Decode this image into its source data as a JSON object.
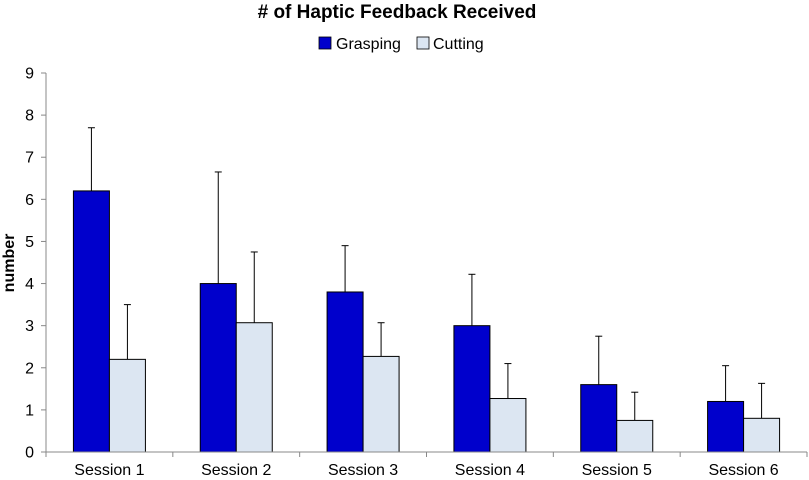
{
  "chart_data": {
    "type": "bar",
    "title": "# of Haptic Feedback Received",
    "xlabel": "",
    "ylabel": "number",
    "ylim": [
      0,
      9
    ],
    "yticks": [
      "0",
      "1",
      "2",
      "3",
      "4",
      "5",
      "6",
      "7",
      "8",
      "9"
    ],
    "categories": [
      "Session 1",
      "Session 2",
      "Session 3",
      "Session 4",
      "Session 5",
      "Session 6"
    ],
    "series": [
      {
        "name": "Grasping",
        "color": "#0000CC",
        "values": [
          6.2,
          4.0,
          3.8,
          3.0,
          1.6,
          1.2
        ],
        "error": [
          1.5,
          2.65,
          1.1,
          1.22,
          1.15,
          0.85
        ]
      },
      {
        "name": "Cutting",
        "color": "#DCE6F2",
        "values": [
          2.2,
          3.07,
          2.27,
          1.27,
          0.75,
          0.8
        ],
        "error": [
          1.3,
          1.68,
          0.8,
          0.83,
          0.67,
          0.83
        ]
      }
    ],
    "legend_position": "top-center",
    "grid": false
  }
}
